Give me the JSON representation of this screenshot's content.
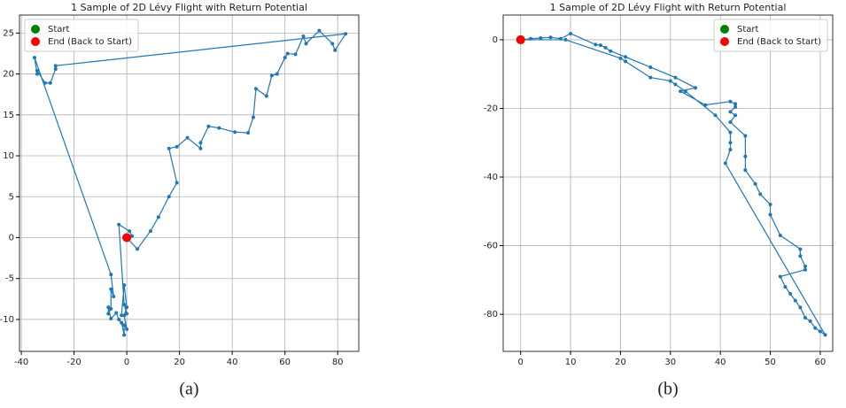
{
  "chart_data": [
    {
      "type": "line",
      "title": "1 Sample of 2D Lévy Flight with Return Potential",
      "caption": "(a)",
      "xlim": [
        -40.7,
        88
      ],
      "ylim": [
        -13.9,
        27.2
      ],
      "xticks": [
        -40,
        -20,
        0,
        20,
        40,
        60,
        80
      ],
      "yticks": [
        -10,
        -5,
        0,
        5,
        10,
        15,
        20,
        25
      ],
      "grid": true,
      "legend": "upper left",
      "series": [
        {
          "color": "#1f77b4",
          "x": [
            0,
            4,
            9,
            12,
            16,
            19,
            16,
            19,
            23,
            28,
            28,
            31,
            35,
            41,
            46,
            48,
            49,
            53,
            55,
            57,
            60,
            61,
            64,
            67,
            68,
            73,
            78,
            79,
            83,
            -27,
            -27,
            -29,
            -31,
            -34,
            -34,
            -35,
            -6,
            -5,
            -6,
            -6,
            -7,
            -7,
            -6,
            -4,
            -3,
            -2,
            -1,
            -1,
            0,
            -1,
            0,
            -1,
            -2,
            0,
            -1,
            -3,
            1,
            2,
            0
          ],
          "y": [
            0,
            -1.4,
            0.8,
            2.5,
            5,
            6.7,
            10.9,
            11.1,
            12.2,
            10.9,
            11.6,
            13.6,
            13.4,
            12.9,
            12.8,
            14.7,
            18.2,
            17.3,
            19.8,
            20,
            22,
            22.5,
            22.4,
            24.6,
            23.7,
            25.3,
            23.7,
            22.9,
            24.9,
            21,
            20.6,
            18.9,
            18.9,
            20.4,
            20,
            22,
            -4.5,
            -7.2,
            -6.3,
            -8.7,
            -9.3,
            -8.5,
            -9.9,
            -9.2,
            -10,
            -10.4,
            -11.9,
            -10.7,
            -11.2,
            -9.5,
            -8.5,
            -5.8,
            -9.5,
            -9.3,
            -8.2,
            1.6,
            0.8,
            0.2,
            0
          ]
        }
      ],
      "markers": [
        {
          "name": "Start",
          "color": "#008000",
          "x": 0,
          "y": 0
        },
        {
          "name": "End (Back to Start)",
          "color": "#ff0000",
          "x": 0,
          "y": 0
        }
      ]
    },
    {
      "type": "line",
      "title": "1 Sample of 2D Lévy Flight with Return Potential",
      "caption": "(b)",
      "xlim": [
        -3.5,
        62.5
      ],
      "ylim": [
        -90.8,
        7.2
      ],
      "xticks": [
        0,
        10,
        20,
        30,
        40,
        50,
        60
      ],
      "yticks": [
        -80,
        -60,
        -40,
        -20,
        0
      ],
      "grid": true,
      "legend": "upper right",
      "series": [
        {
          "color": "#1f77b4",
          "x": [
            0,
            2,
            4,
            6,
            8,
            10,
            15,
            16,
            17,
            18,
            21,
            26,
            31,
            35,
            32,
            37,
            42,
            43,
            43,
            42,
            43,
            42,
            45,
            45,
            45,
            47,
            48,
            50,
            50,
            52,
            56,
            56,
            57,
            57,
            52,
            53,
            54,
            55,
            56,
            57,
            58,
            59,
            60,
            61,
            41,
            42,
            42,
            42,
            39,
            33,
            31,
            30,
            26,
            21,
            20,
            9,
            0
          ],
          "y": [
            0,
            0.3,
            0.5,
            0.7,
            0.3,
            1.8,
            -1.4,
            -1.6,
            -2.3,
            -3.3,
            -5,
            -8,
            -11,
            -14,
            -15,
            -19,
            -18,
            -18.7,
            -19.6,
            -21,
            -22,
            -24,
            -28,
            -34,
            -38,
            -42,
            -45,
            -48,
            -51,
            -57,
            -61,
            -63,
            -66,
            -67,
            -69,
            -72,
            -74,
            -76,
            -78,
            -81,
            -82,
            -84,
            -85,
            -86,
            -36,
            -32,
            -30,
            -27,
            -22,
            -15,
            -13,
            -12,
            -11,
            -6.3,
            -5.4,
            0,
            0
          ]
        }
      ],
      "markers": [
        {
          "name": "Start",
          "color": "#008000",
          "x": 0,
          "y": 0
        },
        {
          "name": "End (Back to Start)",
          "color": "#ff0000",
          "x": 0,
          "y": 0
        }
      ]
    }
  ]
}
